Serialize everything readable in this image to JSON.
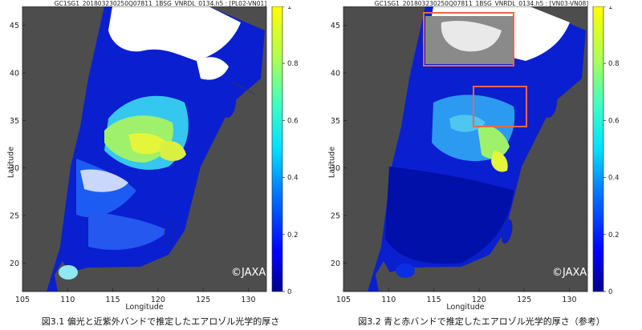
{
  "panels": [
    {
      "title": "GC1SG1_201803230250Q07811_1BSG_VNRDL_0134.h5 : [PL02-VN01]",
      "caption": "図3.1 偏光と近紫外バンドで推定したエアロゾル光学的厚さ",
      "copyright": "©JAXA",
      "xlabel": "Longitude",
      "ylabel": "Latitude",
      "x_ticks": [
        "105",
        "110",
        "115",
        "120",
        "125",
        "130"
      ],
      "y_ticks": [
        "20",
        "25",
        "30",
        "35",
        "40",
        "45"
      ],
      "colorbar_ticks": [
        "0",
        "0.2",
        "0.4",
        "0.6",
        "0.8",
        "1"
      ],
      "colorbar_range": [
        0,
        1
      ],
      "colorbar_colormap": "jet"
    },
    {
      "title": "GC1SG1_201803230250Q07811_1BSG_VNRDL_0134.h5 : [VN03-VN08]",
      "caption": "図3.2 青と赤バンドで推定したエアロゾル光学的厚さ（参考）",
      "copyright": "©JAXA",
      "xlabel": "Longitude",
      "ylabel": "Latitude",
      "x_ticks": [
        "105",
        "110",
        "115",
        "120",
        "125",
        "130"
      ],
      "y_ticks": [
        "20",
        "25",
        "30",
        "35",
        "40",
        "45"
      ],
      "colorbar_ticks": [
        "0",
        "0.2",
        "0.4",
        "0.6",
        "0.8",
        "1"
      ],
      "colorbar_range": [
        0,
        1
      ],
      "colorbar_colormap": "jet",
      "highlight_box_color": "#e8684a"
    }
  ],
  "map": {
    "lon_range": [
      105,
      132
    ],
    "lat_range": [
      17,
      47
    ],
    "land_color": "#4d4d4d",
    "cloud_color": "#ffffff"
  }
}
